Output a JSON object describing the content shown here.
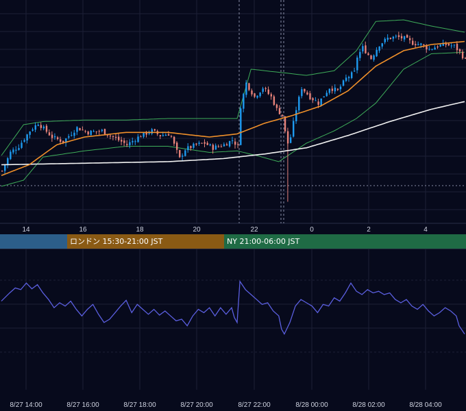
{
  "chart_data": [
    {
      "type": "candlestick",
      "x_tick_labels": [
        "14",
        "16",
        "18",
        "20",
        "22",
        "0",
        "2",
        "4"
      ],
      "ylim": [
        0,
        100
      ],
      "grid": true,
      "colors": {
        "up": "#1e9bf0",
        "down": "#e8837a",
        "ma_short": "#f0902a",
        "ma_long": "#f2f2f2",
        "bollinger": "#3fae5a",
        "background": "#070a1c",
        "grid": "#1c2036",
        "marker_line": "#8a8fa8"
      },
      "ohlc_key_points": [
        {
          "t": 0,
          "close": 18
        },
        {
          "t": 3,
          "close": 30
        },
        {
          "t": 6,
          "close": 34
        },
        {
          "t": 10,
          "close": 44
        },
        {
          "t": 13,
          "close": 49
        },
        {
          "t": 18,
          "close": 40
        },
        {
          "t": 22,
          "close": 37
        },
        {
          "t": 27,
          "close": 46
        },
        {
          "t": 31,
          "close": 43
        },
        {
          "t": 36,
          "close": 44
        },
        {
          "t": 40,
          "close": 40
        },
        {
          "t": 45,
          "close": 35
        },
        {
          "t": 50,
          "close": 41
        },
        {
          "t": 54,
          "close": 44
        },
        {
          "t": 57,
          "close": 41
        },
        {
          "t": 60,
          "close": 42
        },
        {
          "t": 61,
          "close": 40
        },
        {
          "t": 62,
          "close": 35
        },
        {
          "t": 64,
          "close": 26
        },
        {
          "t": 66,
          "close": 32
        },
        {
          "t": 70,
          "close": 35
        },
        {
          "t": 73,
          "close": 36
        },
        {
          "t": 76,
          "close": 33
        },
        {
          "t": 80,
          "close": 35
        },
        {
          "t": 83,
          "close": 38
        },
        {
          "t": 85,
          "close": 34
        },
        {
          "t": 86,
          "close": 60
        },
        {
          "t": 88,
          "close": 75
        },
        {
          "t": 91,
          "close": 66
        },
        {
          "t": 94,
          "close": 72
        },
        {
          "t": 97,
          "close": 66
        },
        {
          "t": 99,
          "close": 58
        },
        {
          "t": 101,
          "close": 54
        },
        {
          "t": 102,
          "close": 43
        },
        {
          "t": 103,
          "close": 36
        },
        {
          "t": 104,
          "close": 40
        },
        {
          "t": 106,
          "close": 58
        },
        {
          "t": 108,
          "close": 72
        },
        {
          "t": 111,
          "close": 66
        },
        {
          "t": 114,
          "close": 62
        },
        {
          "t": 118,
          "close": 72
        },
        {
          "t": 121,
          "close": 70
        },
        {
          "t": 124,
          "close": 78
        },
        {
          "t": 127,
          "close": 82
        },
        {
          "t": 128,
          "close": 92
        },
        {
          "t": 130,
          "close": 98
        },
        {
          "t": 133,
          "close": 91
        },
        {
          "t": 136,
          "close": 100
        },
        {
          "t": 139,
          "close": 104
        },
        {
          "t": 142,
          "close": 105
        },
        {
          "t": 145,
          "close": 104
        },
        {
          "t": 148,
          "close": 101
        },
        {
          "t": 151,
          "close": 100
        },
        {
          "t": 154,
          "close": 97
        },
        {
          "t": 157,
          "close": 99
        },
        {
          "t": 160,
          "close": 100
        },
        {
          "t": 163,
          "close": 99
        },
        {
          "t": 165,
          "close": 95
        },
        {
          "t": 167,
          "close": 90
        }
      ],
      "ma_short_points": [
        {
          "t": 0,
          "v": 15
        },
        {
          "t": 10,
          "v": 22
        },
        {
          "t": 20,
          "v": 35
        },
        {
          "t": 30,
          "v": 40
        },
        {
          "t": 45,
          "v": 43
        },
        {
          "t": 60,
          "v": 43
        },
        {
          "t": 75,
          "v": 40
        },
        {
          "t": 85,
          "v": 42
        },
        {
          "t": 95,
          "v": 49
        },
        {
          "t": 105,
          "v": 54
        },
        {
          "t": 115,
          "v": 60
        },
        {
          "t": 125,
          "v": 70
        },
        {
          "t": 135,
          "v": 86
        },
        {
          "t": 145,
          "v": 96
        },
        {
          "t": 155,
          "v": 100
        },
        {
          "t": 167,
          "v": 102
        }
      ],
      "ma_long_points": [
        {
          "t": 0,
          "v": 22
        },
        {
          "t": 30,
          "v": 23
        },
        {
          "t": 60,
          "v": 24
        },
        {
          "t": 80,
          "v": 26
        },
        {
          "t": 95,
          "v": 29
        },
        {
          "t": 110,
          "v": 33
        },
        {
          "t": 125,
          "v": 41
        },
        {
          "t": 140,
          "v": 50
        },
        {
          "t": 155,
          "v": 58
        },
        {
          "t": 167,
          "v": 63
        }
      ],
      "bb_upper_points": [
        {
          "t": 0,
          "v": 28
        },
        {
          "t": 8,
          "v": 48
        },
        {
          "t": 15,
          "v": 50
        },
        {
          "t": 30,
          "v": 51
        },
        {
          "t": 45,
          "v": 51
        },
        {
          "t": 60,
          "v": 52
        },
        {
          "t": 75,
          "v": 52
        },
        {
          "t": 85,
          "v": 52
        },
        {
          "t": 90,
          "v": 84
        },
        {
          "t": 100,
          "v": 82
        },
        {
          "t": 110,
          "v": 80
        },
        {
          "t": 120,
          "v": 83
        },
        {
          "t": 128,
          "v": 96
        },
        {
          "t": 135,
          "v": 115
        },
        {
          "t": 145,
          "v": 116
        },
        {
          "t": 155,
          "v": 112
        },
        {
          "t": 167,
          "v": 108
        }
      ],
      "bb_lower_points": [
        {
          "t": 0,
          "v": 8
        },
        {
          "t": 8,
          "v": 12
        },
        {
          "t": 15,
          "v": 27
        },
        {
          "t": 30,
          "v": 31
        },
        {
          "t": 45,
          "v": 34
        },
        {
          "t": 60,
          "v": 34
        },
        {
          "t": 75,
          "v": 30
        },
        {
          "t": 85,
          "v": 31
        },
        {
          "t": 92,
          "v": 28
        },
        {
          "t": 100,
          "v": 24
        },
        {
          "t": 110,
          "v": 36
        },
        {
          "t": 120,
          "v": 44
        },
        {
          "t": 128,
          "v": 52
        },
        {
          "t": 135,
          "v": 62
        },
        {
          "t": 145,
          "v": 84
        },
        {
          "t": 155,
          "v": 94
        },
        {
          "t": 167,
          "v": 95
        }
      ]
    },
    {
      "type": "line",
      "x_tick_labels": [
        "8/27 14:00",
        "8/27 16:00",
        "8/27 18:00",
        "8/27 20:00",
        "8/27 22:00",
        "8/28 00:00",
        "8/28 02:00",
        "8/28 04:00"
      ],
      "ylim": [
        0,
        100
      ],
      "grid": true,
      "colors": {
        "line": "#5b5fe0",
        "grid": "#1c2036"
      },
      "points": [
        {
          "t": 0,
          "v": 62
        },
        {
          "t": 3,
          "v": 72
        },
        {
          "t": 5,
          "v": 78
        },
        {
          "t": 7,
          "v": 76
        },
        {
          "t": 9,
          "v": 84
        },
        {
          "t": 11,
          "v": 77
        },
        {
          "t": 13,
          "v": 82
        },
        {
          "t": 15,
          "v": 72
        },
        {
          "t": 17,
          "v": 64
        },
        {
          "t": 19,
          "v": 54
        },
        {
          "t": 21,
          "v": 60
        },
        {
          "t": 23,
          "v": 56
        },
        {
          "t": 25,
          "v": 62
        },
        {
          "t": 27,
          "v": 52
        },
        {
          "t": 29,
          "v": 44
        },
        {
          "t": 31,
          "v": 52
        },
        {
          "t": 33,
          "v": 58
        },
        {
          "t": 35,
          "v": 46
        },
        {
          "t": 37,
          "v": 36
        },
        {
          "t": 39,
          "v": 40
        },
        {
          "t": 41,
          "v": 48
        },
        {
          "t": 43,
          "v": 56
        },
        {
          "t": 45,
          "v": 63
        },
        {
          "t": 47,
          "v": 48
        },
        {
          "t": 49,
          "v": 58
        },
        {
          "t": 51,
          "v": 52
        },
        {
          "t": 53,
          "v": 46
        },
        {
          "t": 55,
          "v": 52
        },
        {
          "t": 57,
          "v": 45
        },
        {
          "t": 59,
          "v": 50
        },
        {
          "t": 61,
          "v": 44
        },
        {
          "t": 63,
          "v": 38
        },
        {
          "t": 65,
          "v": 40
        },
        {
          "t": 67,
          "v": 32
        },
        {
          "t": 69,
          "v": 44
        },
        {
          "t": 71,
          "v": 52
        },
        {
          "t": 73,
          "v": 48
        },
        {
          "t": 75,
          "v": 54
        },
        {
          "t": 77,
          "v": 44
        },
        {
          "t": 79,
          "v": 54
        },
        {
          "t": 81,
          "v": 46
        },
        {
          "t": 83,
          "v": 54
        },
        {
          "t": 84,
          "v": 42
        },
        {
          "t": 85,
          "v": 36
        },
        {
          "t": 86,
          "v": 86
        },
        {
          "t": 88,
          "v": 76
        },
        {
          "t": 90,
          "v": 70
        },
        {
          "t": 92,
          "v": 64
        },
        {
          "t": 94,
          "v": 58
        },
        {
          "t": 96,
          "v": 60
        },
        {
          "t": 98,
          "v": 50
        },
        {
          "t": 100,
          "v": 44
        },
        {
          "t": 101,
          "v": 28
        },
        {
          "t": 102,
          "v": 22
        },
        {
          "t": 104,
          "v": 36
        },
        {
          "t": 106,
          "v": 56
        },
        {
          "t": 108,
          "v": 64
        },
        {
          "t": 110,
          "v": 60
        },
        {
          "t": 112,
          "v": 56
        },
        {
          "t": 114,
          "v": 48
        },
        {
          "t": 116,
          "v": 58
        },
        {
          "t": 118,
          "v": 56
        },
        {
          "t": 120,
          "v": 66
        },
        {
          "t": 122,
          "v": 62
        },
        {
          "t": 124,
          "v": 72
        },
        {
          "t": 126,
          "v": 84
        },
        {
          "t": 128,
          "v": 74
        },
        {
          "t": 130,
          "v": 70
        },
        {
          "t": 132,
          "v": 76
        },
        {
          "t": 134,
          "v": 72
        },
        {
          "t": 136,
          "v": 74
        },
        {
          "t": 138,
          "v": 70
        },
        {
          "t": 140,
          "v": 72
        },
        {
          "t": 142,
          "v": 64
        },
        {
          "t": 144,
          "v": 60
        },
        {
          "t": 146,
          "v": 64
        },
        {
          "t": 148,
          "v": 56
        },
        {
          "t": 150,
          "v": 52
        },
        {
          "t": 152,
          "v": 58
        },
        {
          "t": 154,
          "v": 50
        },
        {
          "t": 156,
          "v": 44
        },
        {
          "t": 158,
          "v": 48
        },
        {
          "t": 160,
          "v": 54
        },
        {
          "t": 162,
          "v": 50
        },
        {
          "t": 164,
          "v": 44
        },
        {
          "t": 165,
          "v": 32
        },
        {
          "t": 167,
          "v": 22
        }
      ]
    }
  ],
  "sessions": [
    {
      "label": "",
      "color": "#2c5e8a"
    },
    {
      "label": "ロンドン 15:30-21:00 JST",
      "color": "#8a5a14"
    },
    {
      "label": "NY 21:00-06:00 JST",
      "color": "#1f6b45"
    }
  ]
}
